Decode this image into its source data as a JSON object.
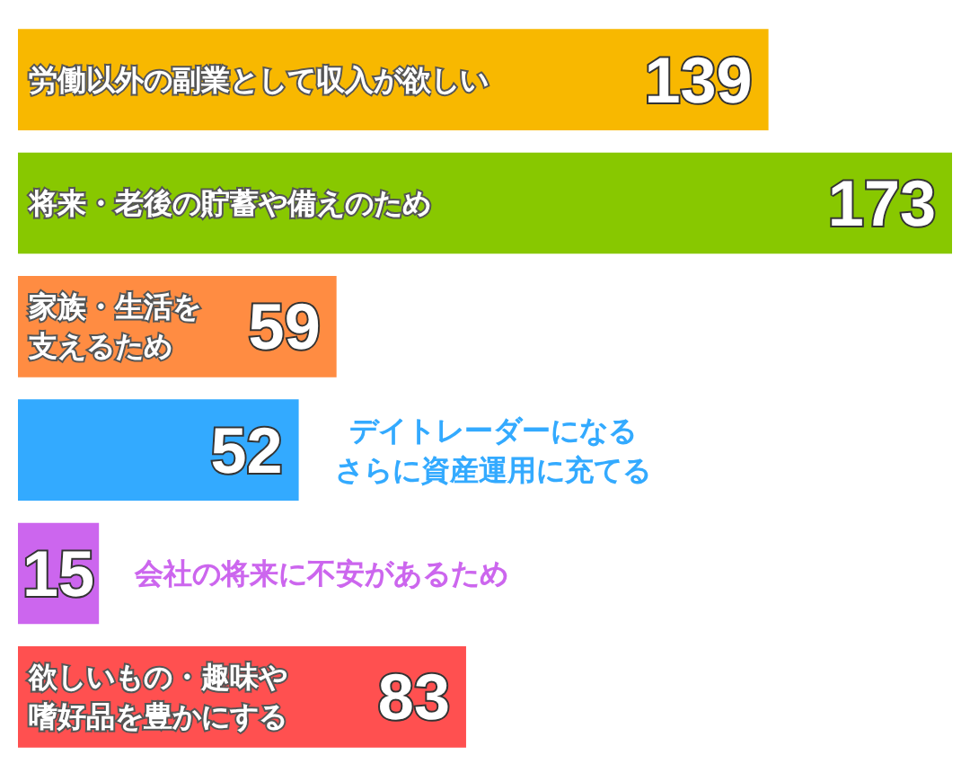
{
  "chart_data": {
    "type": "bar",
    "orientation": "horizontal",
    "categories": [
      "労働以外の副業として収入が欲しい",
      "将来・老後の貯蓄や備えのため",
      "家族・生活を支えるため",
      "デイトレーダーになるさらに資産運用に充てる",
      "会社の将来に不安があるため",
      "欲しいもの・趣味や嗜好品を豊かにする"
    ],
    "values": [
      139,
      173,
      59,
      52,
      15,
      83
    ],
    "colors": [
      "#f8b800",
      "#88c800",
      "#ff8c42",
      "#33aaff",
      "#cc66ee",
      "#ff5050"
    ],
    "data_labels": true
  }
}
